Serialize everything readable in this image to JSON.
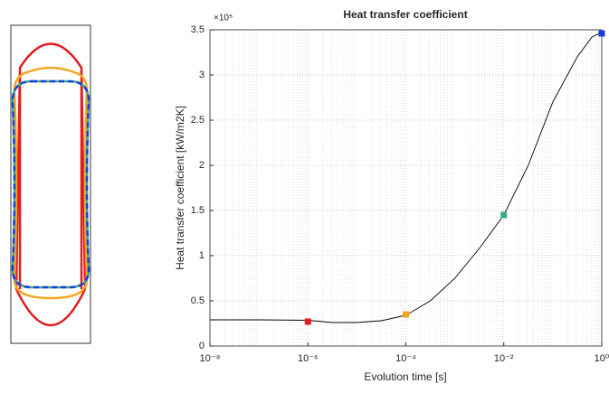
{
  "chart_data": {
    "type": "line",
    "title": "Heat transfer coefficient",
    "xlabel": "Evolution time [s]",
    "ylabel": "Heat transfer coefficient [kW/m2K]",
    "y_multiplier_label": "×10⁵",
    "xscale": "log",
    "grid": true,
    "color": "#000000",
    "xlim": [
      1e-08,
      1
    ],
    "ylim": [
      0,
      3.5
    ],
    "xticks": [
      {
        "value": 1e-08,
        "label": "10⁻⁸"
      },
      {
        "value": 1e-06,
        "label": "10⁻⁶"
      },
      {
        "value": 0.0001,
        "label": "10⁻⁴"
      },
      {
        "value": 0.01,
        "label": "10⁻²"
      },
      {
        "value": 1,
        "label": "10⁰"
      }
    ],
    "yticks": [
      0,
      0.5,
      1,
      1.5,
      2,
      2.5,
      3,
      3.5
    ],
    "x": [
      1e-08,
      1e-07,
      1e-06,
      3.16e-06,
      1e-05,
      3.16e-05,
      0.0001,
      0.000316,
      0.001,
      0.00316,
      0.01,
      0.0316,
      0.1,
      0.316,
      0.631,
      0.891,
      1
    ],
    "values": [
      0.29,
      0.29,
      0.285,
      0.26,
      0.26,
      0.28,
      0.34,
      0.5,
      0.75,
      1.08,
      1.45,
      2.0,
      2.7,
      3.2,
      3.42,
      3.46,
      3.46
    ],
    "markers": {
      "x": [
        1e-06,
        0.0001,
        0.01,
        1
      ],
      "values": [
        0.27,
        0.35,
        1.45,
        3.46
      ],
      "colors": [
        "#e41a1c",
        "#f5a623",
        "#3aa78c",
        "#1a3be0"
      ]
    }
  }
}
